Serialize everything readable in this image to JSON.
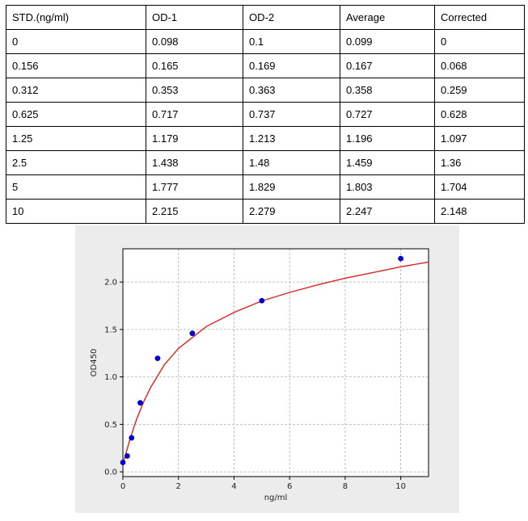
{
  "table": {
    "headers": [
      "STD.(ng/ml)",
      "OD-1",
      "OD-2",
      "Average",
      "Corrected"
    ],
    "rows": [
      [
        "0",
        "0.098",
        "0.1",
        "0.099",
        "0"
      ],
      [
        "0.156",
        "0.165",
        "0.169",
        "0.167",
        "0.068"
      ],
      [
        "0.312",
        "0.353",
        "0.363",
        "0.358",
        "0.259"
      ],
      [
        "0.625",
        "0.717",
        "0.737",
        "0.727",
        "0.628"
      ],
      [
        "1.25",
        "1.179",
        "1.213",
        "1.196",
        "1.097"
      ],
      [
        "2.5",
        "1.438",
        "1.48",
        "1.459",
        "1.36"
      ],
      [
        "5",
        "1.777",
        "1.829",
        "1.803",
        "1.704"
      ],
      [
        "10",
        "2.215",
        "2.279",
        "2.247",
        "2.148"
      ]
    ]
  },
  "chart_data": {
    "type": "scatter",
    "title": "",
    "xlabel": "ng/ml",
    "ylabel": "OD450",
    "xlim": [
      0,
      11
    ],
    "ylim": [
      -0.05,
      2.35
    ],
    "xticks": [
      0,
      2,
      4,
      6,
      8,
      10
    ],
    "xtick_labels": [
      "0",
      "2",
      "4",
      "6",
      "8",
      "10"
    ],
    "yticks": [
      0.0,
      0.5,
      1.0,
      1.5,
      2.0
    ],
    "ytick_labels": [
      "0.0",
      "0.5",
      "1.0",
      "1.5",
      "2.0"
    ],
    "grid": true,
    "series": [
      {
        "kind": "points",
        "color": "#0000cc",
        "x": [
          0,
          0.156,
          0.312,
          0.625,
          1.25,
          2.5,
          5,
          10
        ],
        "y": [
          0.099,
          0.167,
          0.358,
          0.727,
          1.196,
          1.459,
          1.803,
          2.247
        ]
      },
      {
        "kind": "fitted-curve",
        "color": "#dd2222",
        "x": [
          0,
          0.25,
          0.5,
          0.75,
          1,
          1.5,
          2,
          3,
          4,
          5,
          6,
          7,
          8,
          9,
          10,
          11
        ],
        "y": [
          0.08,
          0.34,
          0.56,
          0.74,
          0.89,
          1.13,
          1.3,
          1.53,
          1.68,
          1.8,
          1.89,
          1.97,
          2.04,
          2.1,
          2.16,
          2.21
        ]
      }
    ]
  }
}
